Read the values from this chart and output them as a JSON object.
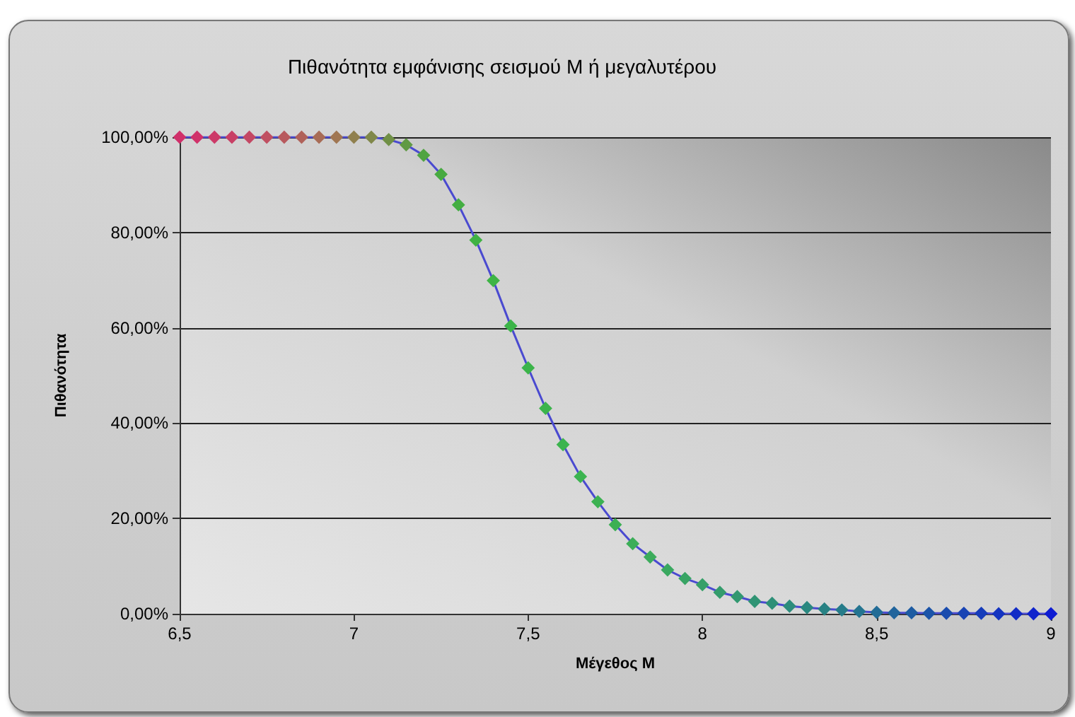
{
  "chart_data": {
    "type": "line",
    "title": "Πιθανότητα εμφάνισης σεισμού Μ ή μεγαλυτέρου",
    "xlabel": "Μέγεθος Μ",
    "ylabel": "Πιθανότητα",
    "x": [
      6.5,
      6.55,
      6.6,
      6.65,
      6.7,
      6.75,
      6.8,
      6.85,
      6.9,
      6.95,
      7,
      7.05,
      7.1,
      7.15,
      7.2,
      7.25,
      7.3,
      7.35,
      7.4,
      7.45,
      7.5,
      7.55,
      7.6,
      7.65,
      7.7,
      7.75,
      7.8,
      7.85,
      7.9,
      7.95,
      8,
      8.05,
      8.1,
      8.15,
      8.2,
      8.25,
      8.3,
      8.35,
      8.4,
      8.45,
      8.5,
      8.55,
      8.6,
      8.65,
      8.7,
      8.75,
      8.8,
      8.85,
      8.9,
      8.95,
      9
    ],
    "series": [
      {
        "color": "#4a4ad0",
        "values": [
          100,
          100,
          100,
          100,
          100,
          100,
          100,
          100,
          100,
          100,
          100,
          100,
          99.5,
          98.4,
          96.2,
          92.2,
          85.8,
          78.4,
          69.9,
          60.4,
          51.6,
          43.1,
          35.5,
          28.8,
          23.5,
          18.7,
          14.7,
          11.9,
          9.2,
          7.4,
          6.1,
          4.5,
          3.6,
          2.6,
          2.2,
          1.6,
          1.3,
          1.0,
          0.8,
          0.5,
          0.3,
          0.2,
          0.2,
          0.1,
          0.1,
          0.1,
          0.1,
          0,
          0,
          0,
          0
        ],
        "colors": [
          "#d0306a",
          "#d0326a",
          "#cc3a68",
          "#c84066",
          "#c44864",
          "#c05062",
          "#b85a5e",
          "#b0625a",
          "#a86c56",
          "#a07652",
          "#90804e",
          "#80884a",
          "#709046",
          "#609a44",
          "#50a442",
          "#48aa42",
          "#44ae42",
          "#40b244",
          "#3eb446",
          "#3cb448",
          "#3cb44a",
          "#3cb44c",
          "#3cb44e",
          "#3cb450",
          "#3cb252",
          "#3cb054",
          "#3cae58",
          "#3cac5c",
          "#3aa860",
          "#38a464",
          "#36a068",
          "#349c6c",
          "#329870",
          "#309474",
          "#2e9078",
          "#2c8c7c",
          "#2a8880",
          "#288284",
          "#267c8a",
          "#247490",
          "#226c96",
          "#20649c",
          "#1e5ca2",
          "#1c54a8",
          "#1a4cae",
          "#1844b4",
          "#163cba",
          "#1434c0",
          "#122cc6",
          "#1024cc",
          "#0e1cd2"
        ]
      }
    ],
    "xlim": [
      6.5,
      9
    ],
    "xticks": [
      {
        "value": 6.5,
        "label": "6,5"
      },
      7,
      {
        "value": 7.5,
        "label": "7,5"
      },
      8,
      {
        "value": 8.5,
        "label": "8,5"
      },
      9
    ],
    "ylim": [
      0,
      100
    ],
    "yticks": [
      {
        "value": 0,
        "label": "0,00%"
      },
      {
        "value": 20,
        "label": "20,00%"
      },
      {
        "value": 40,
        "label": "40,00%"
      },
      {
        "value": 60,
        "label": "60,00%"
      },
      {
        "value": 80,
        "label": "80,00%"
      },
      {
        "value": 100,
        "label": "100,00%"
      }
    ],
    "grid": "y",
    "marker": "diamond",
    "line_style": "solid"
  }
}
